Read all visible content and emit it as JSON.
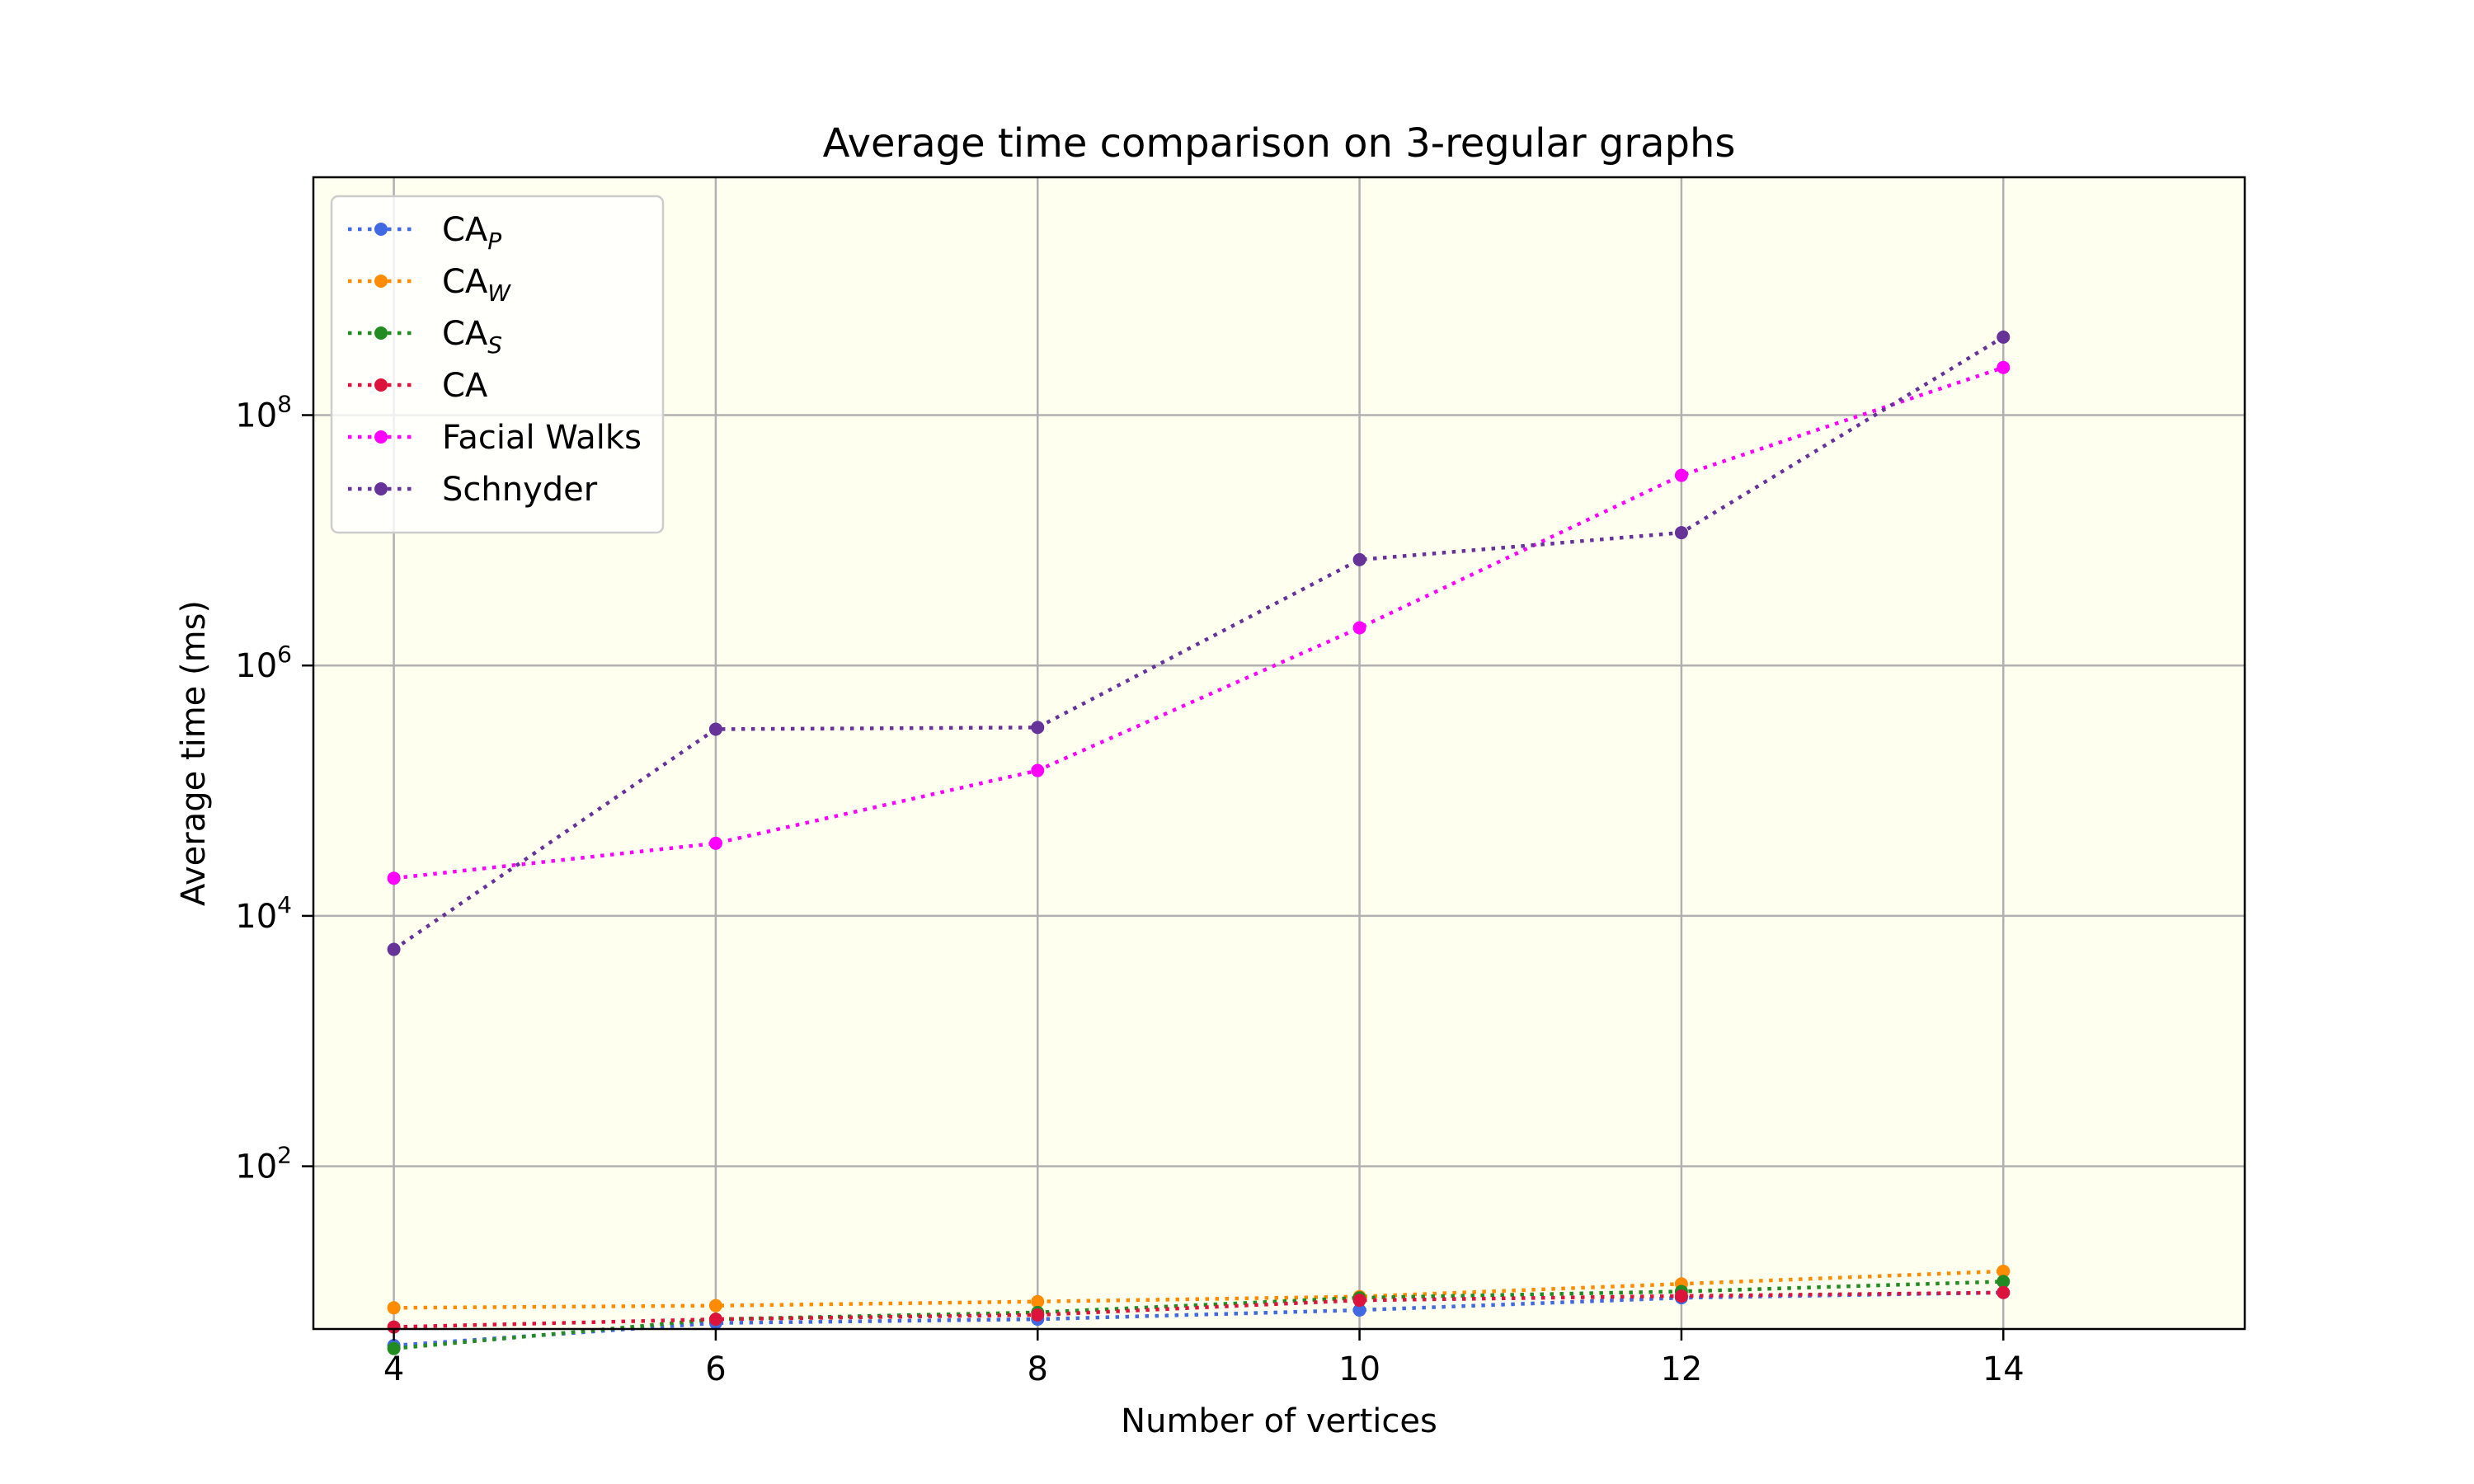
{
  "chart_data": {
    "type": "line",
    "title": "Average time comparison on 3-regular graphs",
    "xlabel": "Number of vertices",
    "ylabel": "Average time (ms)",
    "yscale": "log",
    "xlim": [
      3.5,
      15.5
    ],
    "ylim_exponent": [
      0.7,
      9.9
    ],
    "ylim": [
      5.0,
      7943282347
    ],
    "xticks": [
      {
        "value": 4,
        "label": "4"
      },
      {
        "value": 6,
        "label": "6"
      },
      {
        "value": 8,
        "label": "8"
      },
      {
        "value": 10,
        "label": "10"
      },
      {
        "value": 12,
        "label": "12"
      },
      {
        "value": 14,
        "label": "14"
      }
    ],
    "yticks": [
      {
        "exponent": 2,
        "base": "10",
        "exp": "2"
      },
      {
        "exponent": 4,
        "base": "10",
        "exp": "4"
      },
      {
        "exponent": 6,
        "base": "10",
        "exp": "6"
      },
      {
        "exponent": 8,
        "base": "10",
        "exp": "8"
      }
    ],
    "grid": true,
    "legend_position": "top-left",
    "background_color": "#fffff0",
    "x": [
      4,
      6,
      8,
      10,
      12,
      14
    ],
    "series": [
      {
        "name": "CA",
        "subscript": "P",
        "color": "#4169e1",
        "values": [
          3.7,
          5.6,
          6.0,
          7.1,
          8.9,
          9.8
        ]
      },
      {
        "name": "CA",
        "subscript": "W",
        "color": "#ff8c00",
        "values": [
          7.4,
          7.7,
          8.3,
          9.1,
          11.5,
          14.5
        ]
      },
      {
        "name": "CA",
        "subscript": "S",
        "color": "#228b22",
        "values": [
          3.5,
          6.0,
          6.8,
          8.9,
          10.0,
          12.0
        ]
      },
      {
        "name": "CA",
        "subscript": "",
        "color": "#dc143c",
        "values": [
          5.2,
          6.0,
          6.5,
          8.5,
          9.2,
          9.8
        ]
      },
      {
        "name": "Facial Walks",
        "subscript": "",
        "color": "#ff00ff",
        "values": [
          20000,
          38000,
          145000,
          2000000,
          33000000,
          240000000
        ]
      },
      {
        "name": "Schnyder",
        "subscript": "",
        "color": "#663399",
        "values": [
          5400,
          310000,
          320000,
          7000000,
          11500000,
          420000000
        ]
      }
    ]
  }
}
